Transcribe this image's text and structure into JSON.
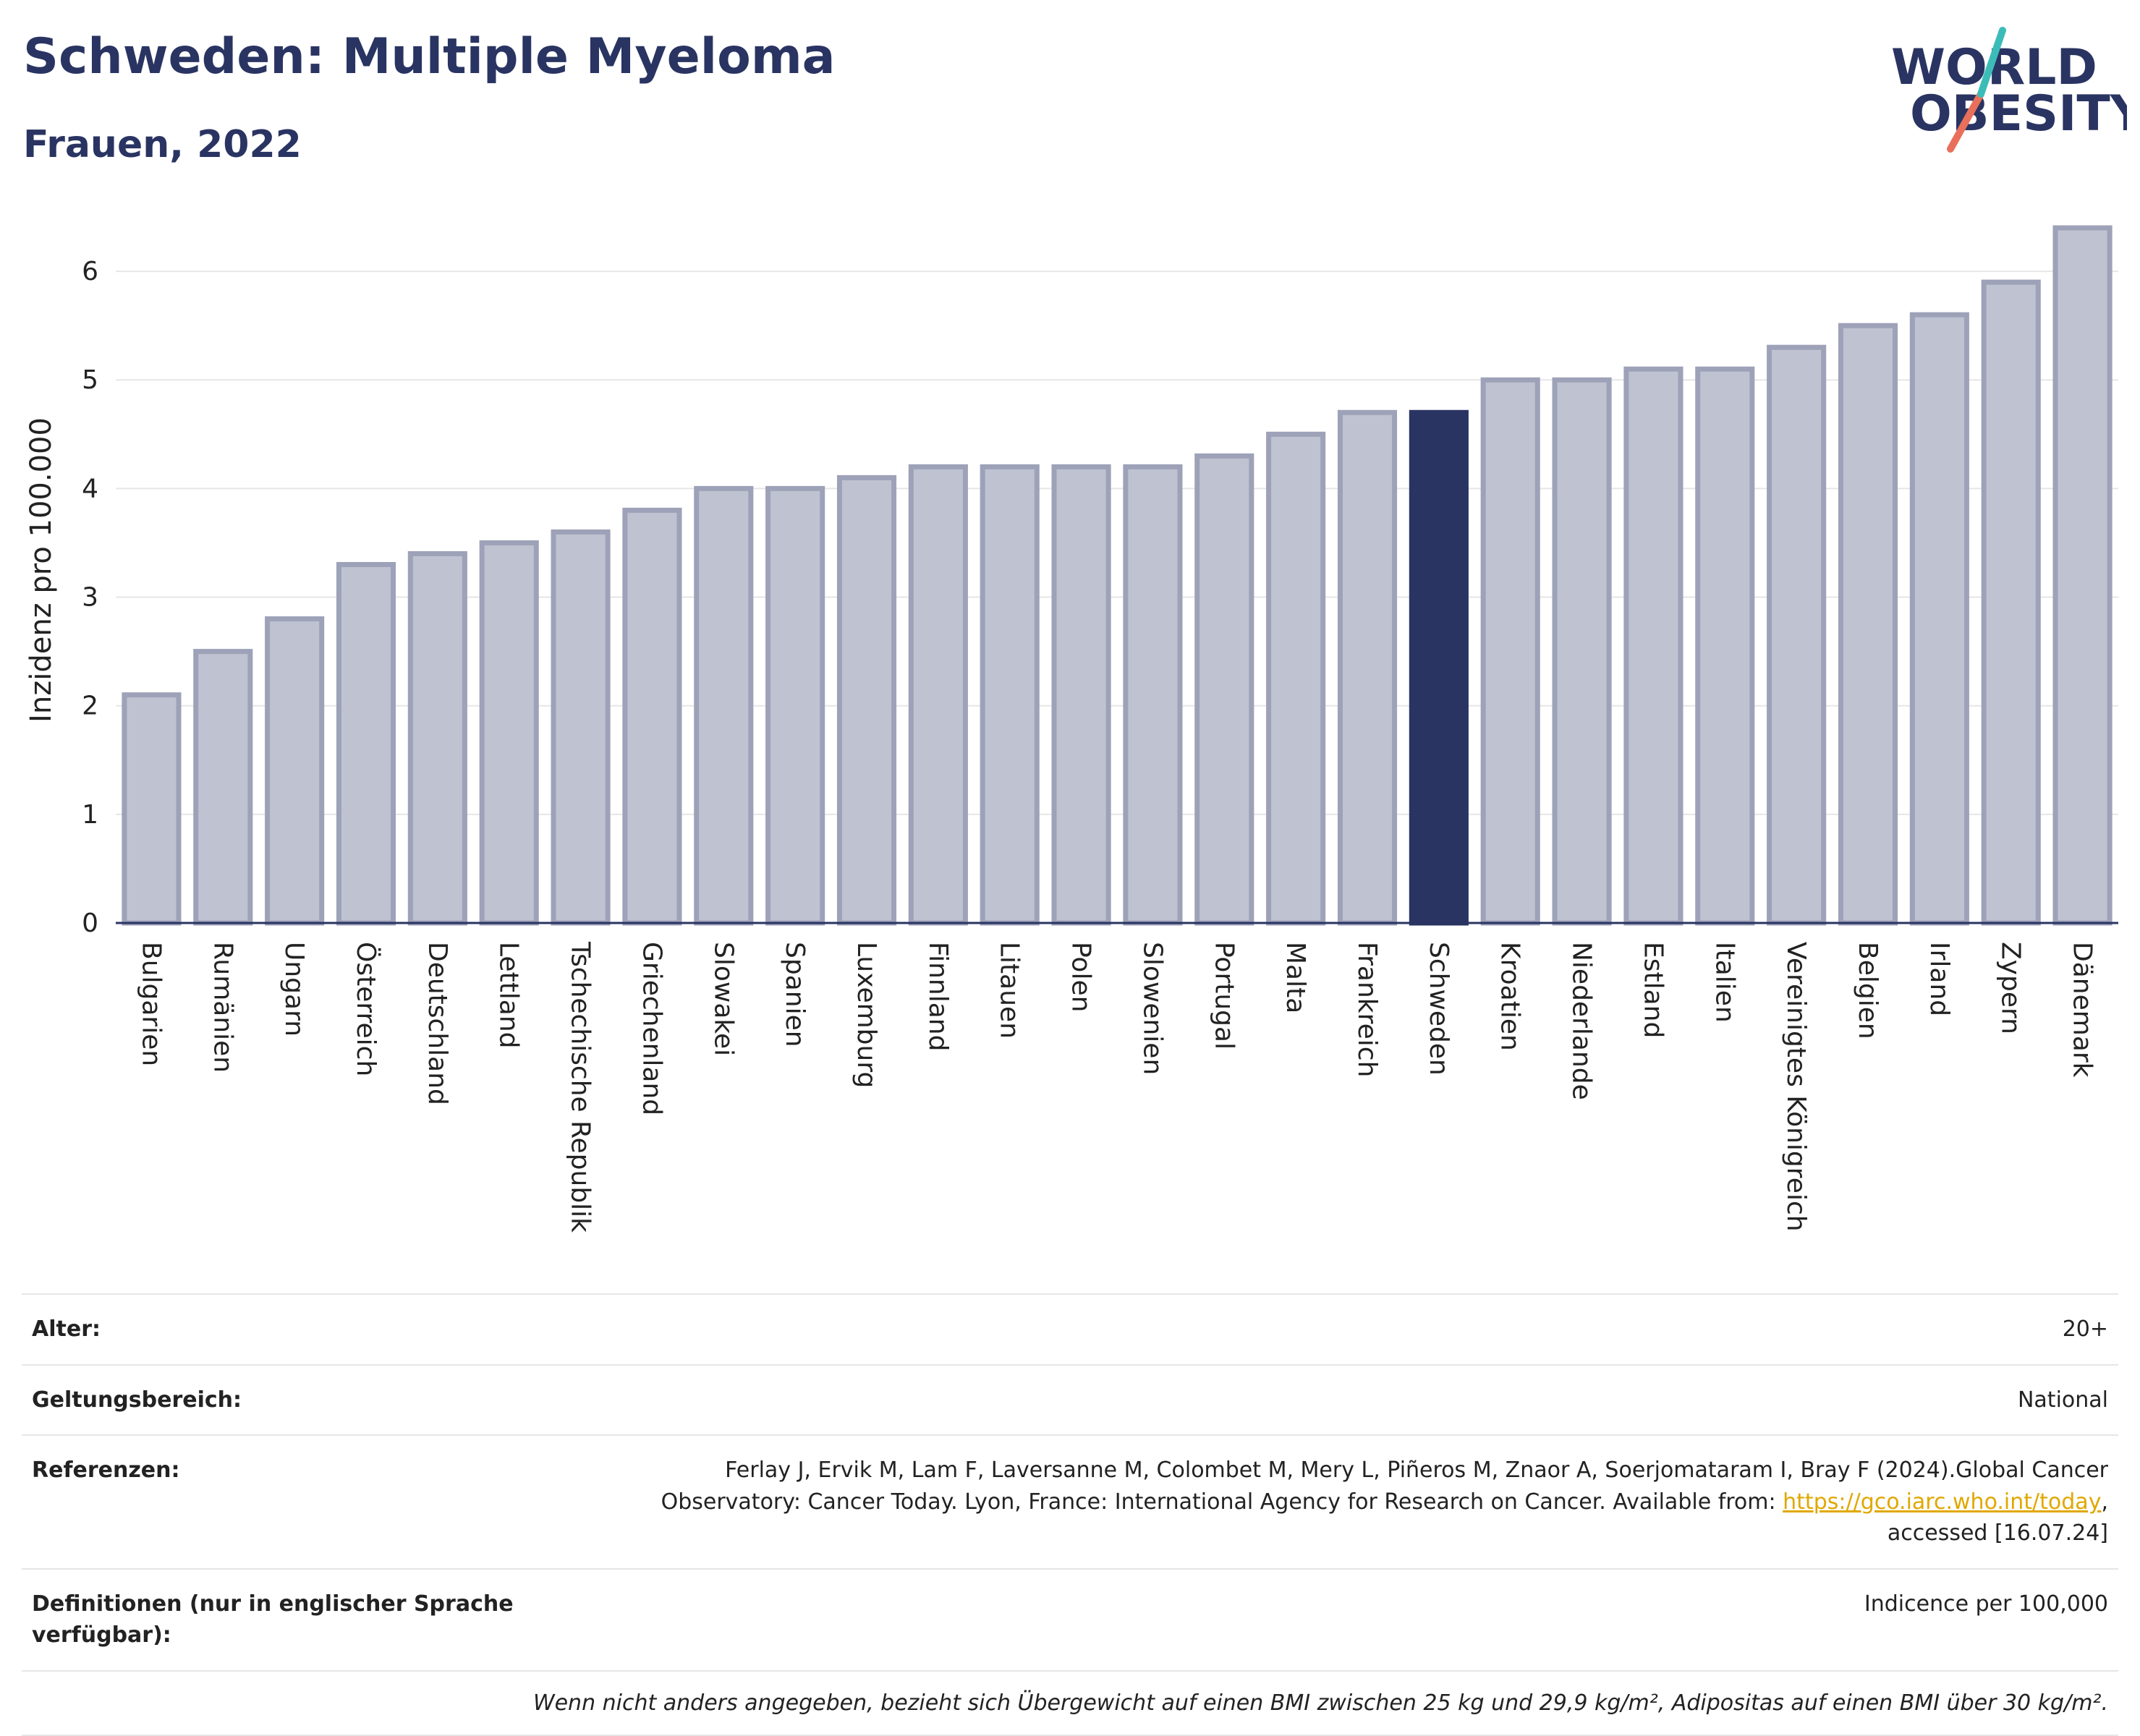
{
  "title": "Schweden: Multiple Myeloma",
  "subtitle": "Frauen, 2022",
  "logo": {
    "line1": "WORLD",
    "line2": "OBESITY"
  },
  "colors": {
    "bar": "#bfc2d0",
    "bar_edge": "#9ea2b8",
    "highlight": "#2a3462",
    "title": "#2a3462"
  },
  "chart_data": {
    "type": "bar",
    "ylabel": "Inzidenz pro 100.000",
    "ylim": [
      0,
      6.5
    ],
    "yticks": [
      0,
      1,
      2,
      3,
      4,
      5,
      6
    ],
    "grid": true,
    "highlight": "Schweden",
    "categories": [
      "Bulgarien",
      "Rumänien",
      "Ungarn",
      "Österreich",
      "Deutschland",
      "Lettland",
      "Tschechische Republik",
      "Griechenland",
      "Slowakei",
      "Spanien",
      "Luxemburg",
      "Finnland",
      "Litauen",
      "Polen",
      "Slowenien",
      "Portugal",
      "Malta",
      "Frankreich",
      "Schweden",
      "Kroatien",
      "Niederlande",
      "Estland",
      "Italien",
      "Vereinigtes Königreich",
      "Belgien",
      "Irland",
      "Zypern",
      "Dänemark"
    ],
    "values": [
      2.1,
      2.5,
      2.8,
      3.3,
      3.4,
      3.5,
      3.6,
      3.8,
      4.0,
      4.0,
      4.1,
      4.2,
      4.2,
      4.2,
      4.2,
      4.3,
      4.5,
      4.7,
      4.7,
      5.0,
      5.0,
      5.1,
      5.1,
      5.3,
      5.5,
      5.6,
      5.9,
      6.4
    ]
  },
  "meta": {
    "age_label": "Alter:",
    "age_value": "20+",
    "scope_label": "Geltungsbereich:",
    "scope_value": "National",
    "ref_label": "Referenzen:",
    "ref_text_1": "Ferlay J, Ervik M, Lam F, Laversanne M, Colombet M, Mery L, Piñeros M, Znaor A, Soerjomataram I, Bray F (2024).Global Cancer",
    "ref_text_2": "Observatory: Cancer Today. Lyon, France: International Agency for Research on Cancer. Available from: ",
    "ref_link": "https://gco.iarc.who.int/today",
    "ref_text_3": ",",
    "ref_text_4": "accessed [16.07.24]",
    "def_label": "Definitionen (nur in englischer Sprache verfügbar):",
    "def_value": "Indicence per 100,000",
    "note": "Wenn nicht anders angegeben, bezieht sich Übergewicht auf einen BMI zwischen 25 kg und 29,9 kg/m², Adipositas auf einen BMI über 30 kg/m²."
  }
}
